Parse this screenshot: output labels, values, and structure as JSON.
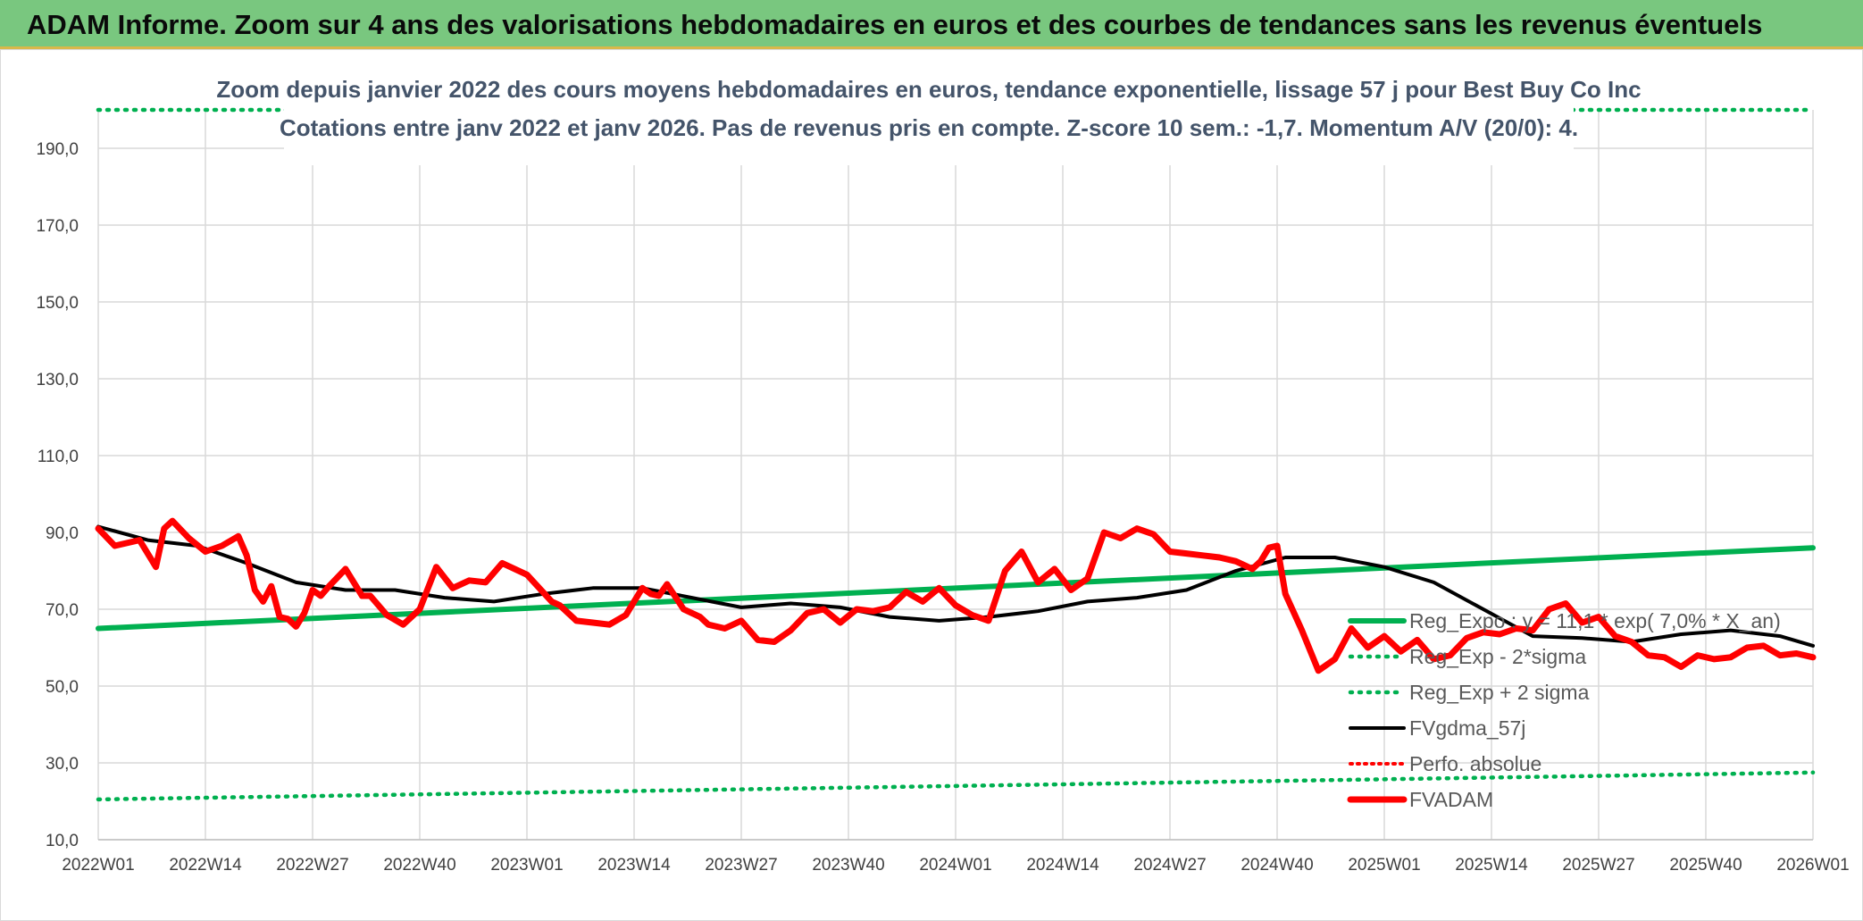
{
  "header": {
    "title": "ADAM Informe. Zoom sur 4 ans des valorisations hebdomadaires en euros et des courbes de tendances sans les revenus éventuels"
  },
  "chart_data": {
    "type": "line",
    "subtitle_line1": "Zoom depuis janvier 2022 des cours moyens hebdomadaires en euros, tendance exponentielle, lissage 57 j pour Best Buy Co Inc",
    "subtitle_line2": "Cotations entre janv 2022 et janv 2026. Pas de revenus pris en compte. Z-score 10 sem.: -1,7. Momentum A/V (20/0): 4.",
    "ylim": [
      10,
      200
    ],
    "yticks": [
      "10,0",
      "30,0",
      "50,0",
      "70,0",
      "90,0",
      "110,0",
      "130,0",
      "150,0",
      "170,0",
      "190,0"
    ],
    "ytick_values": [
      10,
      30,
      50,
      70,
      90,
      110,
      130,
      150,
      170,
      190
    ],
    "xticks": [
      "2022W01",
      "2022W14",
      "2022W27",
      "2022W40",
      "2023W01",
      "2023W14",
      "2023W27",
      "2023W40",
      "2024W01",
      "2024W14",
      "2024W27",
      "2024W40",
      "2025W01",
      "2025W14",
      "2025W27",
      "2025W40",
      "2026W01"
    ],
    "grid": true,
    "legend_position": "lower-right",
    "colors": {
      "reg": "#00b050",
      "sma": "#000000",
      "fvadam": "#ff0000",
      "perfo": "#ff0000"
    },
    "series": [
      {
        "name": "Reg_Expo : y = 11,1 * exp( 7,0% * X_an)",
        "style": "solid",
        "color": "#00b050",
        "x": [
          0,
          208
        ],
        "y": [
          65,
          86
        ]
      },
      {
        "name": "Reg_Exp - 2*sigma",
        "style": "dotted",
        "color": "#00b050",
        "x": [
          0,
          208
        ],
        "y": [
          20.5,
          27.5
        ]
      },
      {
        "name": "Reg_Exp + 2 sigma",
        "style": "dotted",
        "color": "#00b050",
        "x": [
          0,
          208
        ],
        "y": [
          200,
          200
        ]
      },
      {
        "name": "FVgdma_57j",
        "style": "solid",
        "color": "#000000",
        "x": [
          0,
          6,
          12,
          18,
          24,
          30,
          36,
          42,
          48,
          54,
          60,
          66,
          72,
          78,
          84,
          90,
          96,
          102,
          108,
          114,
          120,
          126,
          132,
          138,
          144,
          150,
          156,
          162,
          168,
          174,
          180,
          186,
          192,
          198,
          204,
          208
        ],
        "y": [
          91.5,
          88,
          86.5,
          82,
          77,
          75,
          75,
          73,
          72,
          74,
          75.5,
          75.5,
          73,
          70.5,
          71.5,
          70.5,
          68,
          67,
          68,
          69.5,
          72,
          73,
          75,
          80,
          83.5,
          83.5,
          81,
          77,
          70,
          63,
          62.5,
          61.5,
          63.5,
          64.5,
          63,
          60.5
        ]
      },
      {
        "name": "Perfo. absolue",
        "style": "dotted",
        "color": "#ff0000",
        "x": [],
        "y": []
      },
      {
        "name": "FVADAM",
        "style": "solid",
        "color": "#ff0000",
        "x": [
          0,
          2,
          5,
          7,
          8,
          9,
          11,
          13,
          15,
          17,
          18,
          19,
          20,
          21,
          22,
          23,
          24,
          25,
          26,
          27,
          28,
          30,
          32,
          33,
          35,
          37,
          39,
          41,
          43,
          45,
          47,
          49,
          52,
          55,
          56,
          58,
          60,
          62,
          64,
          66,
          67,
          68,
          69,
          71,
          73,
          74,
          76,
          78,
          80,
          82,
          84,
          86,
          88,
          90,
          92,
          94,
          96,
          98,
          100,
          102,
          104,
          106,
          108,
          110,
          112,
          114,
          116,
          118,
          120,
          122,
          124,
          126,
          128,
          130,
          132,
          134,
          136,
          138,
          140,
          141,
          142,
          143,
          144,
          146,
          148,
          150,
          152,
          154,
          156,
          158,
          160,
          162,
          164,
          166,
          168,
          170,
          172,
          174,
          176,
          178,
          180,
          182,
          184,
          186,
          188,
          190,
          192,
          194,
          196,
          198,
          200,
          202,
          204,
          206,
          208
        ],
        "y": [
          91,
          86.5,
          88,
          81,
          91,
          93,
          88.5,
          85,
          86.5,
          89,
          84,
          75,
          72,
          76,
          68,
          67.5,
          65.5,
          69,
          75,
          73.5,
          76,
          80.5,
          73.5,
          73.5,
          68.5,
          66,
          70,
          81,
          75.5,
          77.5,
          77,
          82,
          79,
          72,
          71,
          67,
          66.5,
          66,
          68.5,
          75.5,
          74,
          73.5,
          76.5,
          70,
          68,
          66,
          65,
          67,
          62,
          61.5,
          64.5,
          69,
          70,
          66.5,
          70,
          69.5,
          70.5,
          74.5,
          72,
          75.5,
          71,
          68.5,
          67,
          80,
          85,
          77,
          80.5,
          75,
          78,
          90,
          88.5,
          91,
          89.5,
          85,
          84.5,
          84,
          83.5,
          82.5,
          80.5,
          82.5,
          86,
          86.5,
          74,
          64.5,
          54,
          57,
          65,
          60,
          63,
          59,
          62,
          57,
          58,
          62.5,
          64,
          63.5,
          65,
          64.5,
          70,
          71.5,
          66.5,
          68,
          63,
          61.5,
          58,
          57.5,
          55,
          58,
          57,
          57.5,
          60,
          60.5,
          58,
          58.5,
          57.5
        ]
      }
    ]
  }
}
